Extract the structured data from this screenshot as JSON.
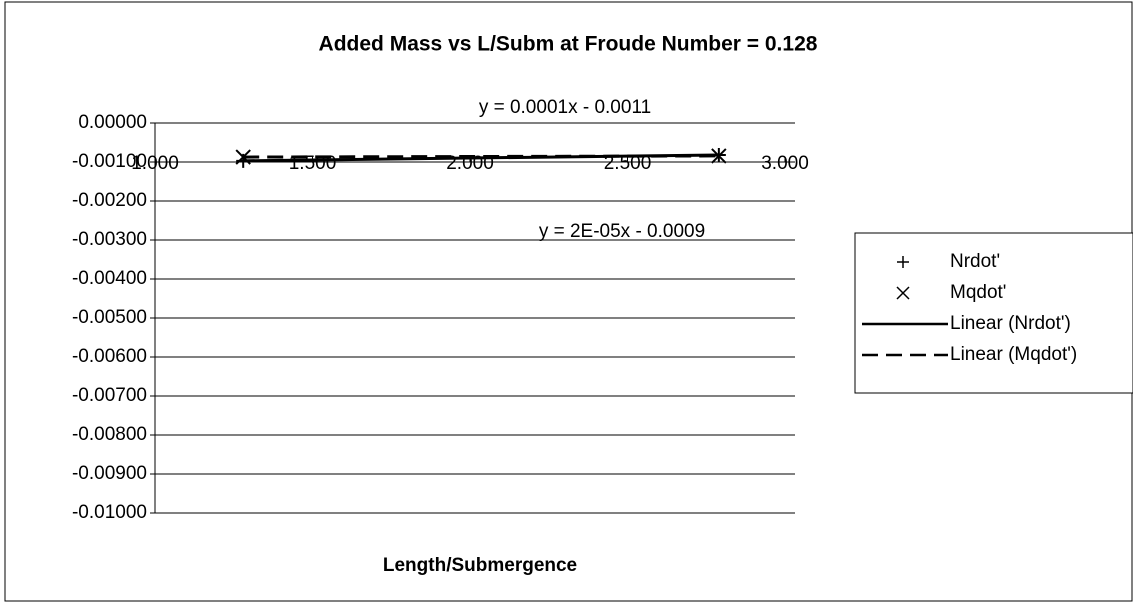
{
  "chart_data": {
    "type": "scatter",
    "title": "Added Mass vs L/Subm at Froude Number = 0.128",
    "xlabel": "Length/Submergence",
    "xlim": [
      1,
      3
    ],
    "xticks": [
      {
        "value": 1,
        "label": "1.000"
      },
      {
        "value": 1.5,
        "label": "1.500"
      },
      {
        "value": 2,
        "label": "2.000"
      },
      {
        "value": 2.5,
        "label": "2.500"
      },
      {
        "value": 3,
        "label": "3.000"
      }
    ],
    "ylim": [
      -0.01,
      0
    ],
    "yticks": [
      {
        "value": 0,
        "label": "0.00000"
      },
      {
        "value": -0.001,
        "label": "-0.00100"
      },
      {
        "value": -0.002,
        "label": "-0.00200"
      },
      {
        "value": -0.003,
        "label": "-0.00300"
      },
      {
        "value": -0.004,
        "label": "-0.00400"
      },
      {
        "value": -0.005,
        "label": "-0.00500"
      },
      {
        "value": -0.006,
        "label": "-0.00600"
      },
      {
        "value": -0.007,
        "label": "-0.00700"
      },
      {
        "value": -0.008,
        "label": "-0.00800"
      },
      {
        "value": -0.009,
        "label": "-0.00900"
      },
      {
        "value": -0.01,
        "label": "-0.01000"
      }
    ],
    "x_axis_at": -0.001,
    "grid": true,
    "legend": "right",
    "series": [
      {
        "name": "Nrdot'",
        "color": "#000000",
        "marker": "plus",
        "x": [
          1.28,
          2.79
        ],
        "values": [
          -0.00097,
          -0.00082
        ],
        "trendline": {
          "name": "Linear (Nrdot')",
          "style": "solid",
          "equation": "y = 0.0001x - 0.0011"
        }
      },
      {
        "name": "Mqdot'",
        "color": "#000000",
        "marker": "cross",
        "x": [
          1.28,
          2.79
        ],
        "values": [
          -0.000874,
          -0.000844
        ],
        "trendline": {
          "name": "Linear (Mqdot')",
          "style": "dashed",
          "equation": "y = 2E-05x - 0.0009"
        }
      }
    ]
  }
}
